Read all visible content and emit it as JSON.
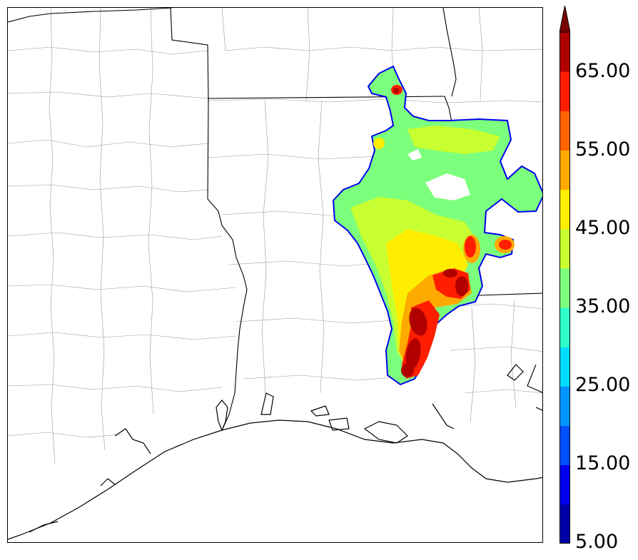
{
  "colorbar": {
    "tick_labels": [
      "65.00",
      "55.00",
      "45.00",
      "35.00",
      "25.00",
      "15.00",
      "5.00"
    ],
    "tick_values": [
      65,
      55,
      45,
      35,
      25,
      15,
      5
    ],
    "min": 5,
    "max": 70,
    "extend": "max",
    "levels": [
      {
        "from": 5,
        "to": 10,
        "color": "#0000a8"
      },
      {
        "from": 10,
        "to": 15,
        "color": "#0000f0"
      },
      {
        "from": 15,
        "to": 20,
        "color": "#0050ff"
      },
      {
        "from": 20,
        "to": 25,
        "color": "#0096ff"
      },
      {
        "from": 25,
        "to": 30,
        "color": "#00dcff"
      },
      {
        "from": 30,
        "to": 35,
        "color": "#30ffc8"
      },
      {
        "from": 35,
        "to": 40,
        "color": "#7cff7c"
      },
      {
        "from": 40,
        "to": 45,
        "color": "#c8ff30"
      },
      {
        "from": 45,
        "to": 50,
        "color": "#ffee00"
      },
      {
        "from": 50,
        "to": 55,
        "color": "#ffaa00"
      },
      {
        "from": 55,
        "to": 60,
        "color": "#ff6400"
      },
      {
        "from": 60,
        "to": 65,
        "color": "#ff1e00"
      },
      {
        "from": 65,
        "to": 70,
        "color": "#b00000"
      }
    ],
    "over_color": "#7a0000"
  },
  "map": {
    "region": "Gulf Coast (Texas / Louisiana / Mississippi)",
    "field_colors": {
      "outline": "#0000f0",
      "base": "#7cff7c",
      "mid": "#c8ff30",
      "warm": "#ffee00",
      "orange": "#ffaa00",
      "red": "#ff1e00",
      "max": "#b00000"
    }
  }
}
